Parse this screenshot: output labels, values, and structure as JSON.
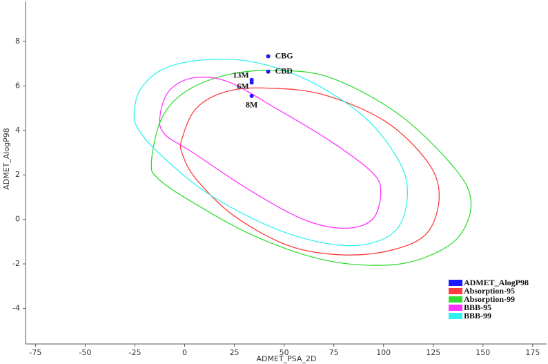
{
  "chart_data": {
    "type": "scatter",
    "x_label": "ADMET_PSA_2D",
    "y_label": "ADMET_AlogP98",
    "xlim": [
      -80,
      182
    ],
    "ylim": [
      -5.6,
      9.8
    ],
    "xticks": [
      -75,
      -50,
      -25,
      0,
      25,
      50,
      75,
      100,
      125,
      150,
      175
    ],
    "yticks": [
      -4,
      -2,
      0,
      2,
      4,
      6,
      8
    ],
    "grid": false,
    "legend": "lower right",
    "series": [
      {
        "name": "ADMET_AlogP98",
        "type": "scatter",
        "color": "#1a1aff",
        "x": [
          42,
          42,
          33.7,
          33.7,
          33.7
        ],
        "y": [
          7.33,
          6.64,
          6.27,
          6.15,
          5.55
        ],
        "labels": [
          "CBG",
          "CBD",
          "13M",
          "6M",
          "8M"
        ]
      },
      {
        "name": "Absorption-95",
        "type": "line",
        "color": "#ff3b3b",
        "x": [
          -1.4,
          5.9,
          21.5,
          42.4,
          70,
          101,
          122,
          128,
          122,
          105,
          80.5,
          52.8,
          25,
          5.9,
          -1
        ],
        "y": [
          3.6,
          5.0,
          5.76,
          5.9,
          5.6,
          4.4,
          2.6,
          1.06,
          -0.6,
          -1.36,
          -1.6,
          -1.2,
          0.15,
          1.8,
          2.9
        ]
      },
      {
        "name": "Absorption-99",
        "type": "line",
        "color": "#33dd33",
        "x": [
          -16.7,
          -11.5,
          0.7,
          21.5,
          45.8,
          73.6,
          108,
          136,
          144,
          138,
          122,
          101,
          70,
          35.4,
          4.2,
          -13.2
        ],
        "y": [
          2.58,
          4.55,
          5.76,
          6.5,
          6.7,
          6.36,
          4.7,
          2.27,
          0.76,
          -0.76,
          -1.67,
          -2.06,
          -1.82,
          -0.76,
          0.76,
          1.82
        ]
      },
      {
        "name": "BBB-95",
        "type": "line",
        "color": "#ff33ff",
        "x": [
          -12.5,
          -8,
          4.2,
          21.5,
          45.8,
          73.6,
          94.4,
          98.6,
          94.4,
          80.5,
          59.7,
          31.9,
          4.2,
          -9.7
        ],
        "y": [
          4.55,
          5.76,
          6.36,
          6.2,
          5.0,
          3.5,
          2.1,
          1.2,
          0,
          -0.4,
          0,
          1.36,
          3.0,
          3.8
        ]
      },
      {
        "name": "BBB-99",
        "type": "line",
        "color": "#33f0f0",
        "x": [
          -25.3,
          -21.9,
          -9.7,
          11.1,
          35.4,
          63.2,
          91,
          108,
          112,
          106.6,
          91,
          70,
          42.4,
          11.1,
          -13.2,
          -23.6
        ],
        "y": [
          4.85,
          5.9,
          6.8,
          7.18,
          7.06,
          6.2,
          4.55,
          2.58,
          1.06,
          -0.45,
          -1.12,
          -1.06,
          -0.3,
          1.2,
          3.0,
          4.1
        ]
      }
    ]
  }
}
